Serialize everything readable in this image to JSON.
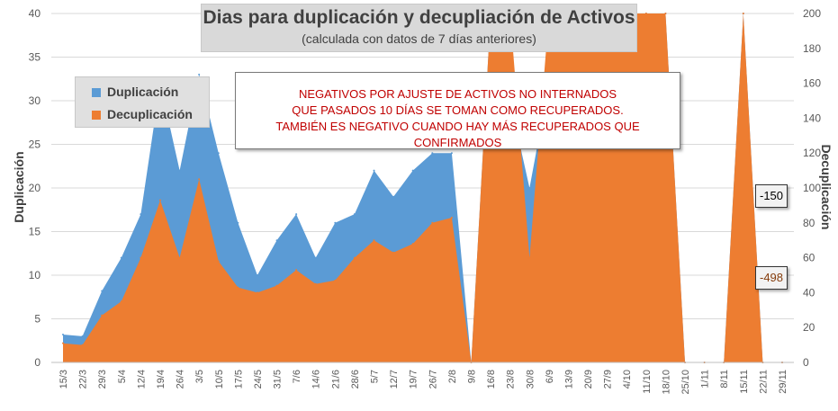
{
  "chart_data": {
    "type": "area",
    "title": "Dias para duplicación y decupliación de Activos",
    "subtitle": "(calculada con datos de 7 días anteriores)",
    "ylabel": "Duplicación",
    "y2label": "Decuplicación",
    "ylim": [
      0,
      40
    ],
    "y2lim": [
      0,
      200
    ],
    "yticks": [
      0,
      5,
      10,
      15,
      20,
      25,
      30,
      35,
      40
    ],
    "y2ticks": [
      0,
      20,
      40,
      60,
      80,
      100,
      120,
      140,
      160,
      180,
      200
    ],
    "xticks": [
      "15/3",
      "22/3",
      "29/3",
      "5/4",
      "12/4",
      "19/4",
      "26/4",
      "3/5",
      "10/5",
      "17/5",
      "24/5",
      "31/5",
      "7/6",
      "14/6",
      "21/6",
      "28/6",
      "5/7",
      "12/7",
      "19/7",
      "26/7",
      "2/8",
      "9/8",
      "16/8",
      "23/8",
      "30/8",
      "6/9",
      "13/9",
      "20/9",
      "27/9",
      "4/10",
      "11/10",
      "18/10",
      "25/10",
      "1/11",
      "8/11",
      "15/11",
      "22/11",
      "29/11"
    ],
    "legend": {
      "position": "top-left",
      "items": [
        "Duplicación",
        "Decuplicación"
      ]
    },
    "grid": true,
    "colors": {
      "Duplicación": "#5b9bd5",
      "Decuplicación": "#ed7d31"
    },
    "series": [
      {
        "name": "Duplicación",
        "axis": "left",
        "days": [
          {
            "date": "15/3",
            "value": 3.2
          },
          {
            "date": "22/3",
            "value": 3.0
          },
          {
            "date": "29/3",
            "value": 8.2
          },
          {
            "date": "5/4",
            "value": 12.0
          },
          {
            "date": "12/4",
            "value": 17.0
          },
          {
            "date": "19/4",
            "value": 32.0
          },
          {
            "date": "26/4",
            "value": 22.0
          },
          {
            "date": "3/5",
            "value": 33.0
          },
          {
            "date": "10/5",
            "value": 24.0
          },
          {
            "date": "17/5",
            "value": 16.0
          },
          {
            "date": "24/5",
            "value": 10.0
          },
          {
            "date": "31/5",
            "value": 14.0
          },
          {
            "date": "7/6",
            "value": 17.0
          },
          {
            "date": "14/6",
            "value": 12.0
          },
          {
            "date": "21/6",
            "value": 16.0
          },
          {
            "date": "28/6",
            "value": 17.0
          },
          {
            "date": "5/7",
            "value": 22.0
          },
          {
            "date": "12/7",
            "value": 19.0
          },
          {
            "date": "19/7",
            "value": 22.0
          },
          {
            "date": "26/7",
            "value": 24.0
          },
          {
            "date": "2/8",
            "value": 24.0
          },
          {
            "date": "9/8",
            "value": 0
          },
          {
            "date": "16/8",
            "value": 40.0
          },
          {
            "date": "23/8",
            "value": 30.0
          },
          {
            "date": "30/8",
            "value": 20.0
          },
          {
            "date": "6/9",
            "value": 32.0
          },
          {
            "date": "13/9",
            "value": 40.0
          },
          {
            "date": "20/9",
            "value": 32.0
          },
          {
            "date": "27/9",
            "value": 30.0
          },
          {
            "date": "4/10",
            "value": 24.0
          },
          {
            "date": "11/10",
            "value": 40.0
          },
          {
            "date": "18/10",
            "value": 40.0
          },
          {
            "date": "25/10",
            "value": 0
          },
          {
            "date": "1/11",
            "value": 0
          },
          {
            "date": "8/11",
            "value": 0
          },
          {
            "date": "15/11",
            "value": 40.0
          },
          {
            "date": "22/11",
            "value": 0
          },
          {
            "date": "29/11",
            "value": 0
          }
        ]
      },
      {
        "name": "Decuplicación",
        "axis": "right",
        "days": [
          {
            "date": "15/3",
            "value": 11
          },
          {
            "date": "22/3",
            "value": 10
          },
          {
            "date": "29/3",
            "value": 27
          },
          {
            "date": "5/4",
            "value": 35
          },
          {
            "date": "12/4",
            "value": 60
          },
          {
            "date": "19/4",
            "value": 93
          },
          {
            "date": "26/4",
            "value": 60
          },
          {
            "date": "3/5",
            "value": 105
          },
          {
            "date": "10/5",
            "value": 58
          },
          {
            "date": "17/5",
            "value": 43
          },
          {
            "date": "24/5",
            "value": 40
          },
          {
            "date": "31/5",
            "value": 44
          },
          {
            "date": "7/6",
            "value": 53
          },
          {
            "date": "14/6",
            "value": 45
          },
          {
            "date": "21/6",
            "value": 47
          },
          {
            "date": "28/6",
            "value": 60
          },
          {
            "date": "5/7",
            "value": 70
          },
          {
            "date": "12/7",
            "value": 63
          },
          {
            "date": "19/7",
            "value": 68
          },
          {
            "date": "26/7",
            "value": 80
          },
          {
            "date": "2/8",
            "value": 83
          },
          {
            "date": "9/8",
            "value": 0
          },
          {
            "date": "16/8",
            "value": 200
          },
          {
            "date": "23/8",
            "value": 200
          },
          {
            "date": "30/8",
            "value": 60
          },
          {
            "date": "6/9",
            "value": 200
          },
          {
            "date": "13/9",
            "value": 200
          },
          {
            "date": "20/9",
            "value": 200
          },
          {
            "date": "27/9",
            "value": 200
          },
          {
            "date": "4/10",
            "value": 200
          },
          {
            "date": "11/10",
            "value": 200
          },
          {
            "date": "18/10",
            "value": 200
          },
          {
            "date": "25/10",
            "value": 0
          },
          {
            "date": "1/11",
            "value": 0
          },
          {
            "date": "8/11",
            "value": 0
          },
          {
            "date": "15/11",
            "value": 200
          },
          {
            "date": "22/11",
            "value": 0
          },
          {
            "date": "29/11",
            "value": 0
          }
        ]
      }
    ]
  },
  "note": {
    "line1": "NEGATIVOS POR AJUSTE DE ACTIVOS NO INTERNADOS",
    "line2": "QUE PASADOS 10 DÍAS SE TOMAN COMO RECUPERADOS.",
    "line3": "TAMBIÉN ES NEGATIVO CUANDO HAY MÁS RECUPERADOS QUE CONFIRMADOS"
  },
  "callouts": {
    "dup": "-150",
    "dec": "-498"
  }
}
